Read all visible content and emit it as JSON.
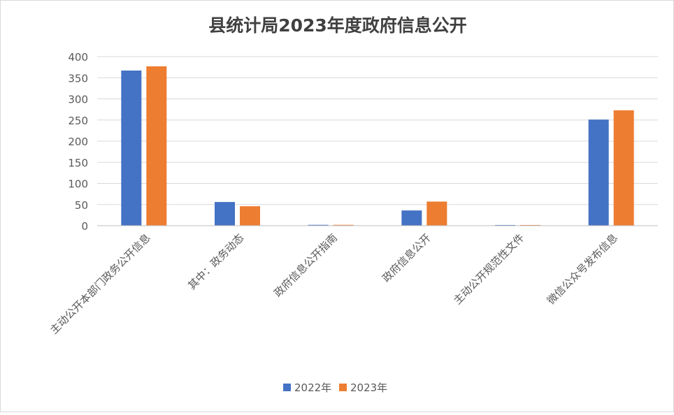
{
  "chart_data": {
    "type": "bar",
    "title": "县统计局2023年度政府信息公开",
    "categories": [
      "主动公开本部门政务公开信息",
      "其中：政务动态",
      "政府信息公开指南",
      "政府信息公开",
      "主动公开规范性文件",
      "微信公众号发布信息"
    ],
    "series": [
      {
        "name": "2022年",
        "color": "#4472C4",
        "values": [
          367,
          56,
          2,
          36,
          0,
          251
        ]
      },
      {
        "name": "2023年",
        "color": "#ED7D31",
        "values": [
          377,
          46,
          2,
          57,
          0,
          273
        ]
      }
    ],
    "ylim": [
      0,
      400
    ],
    "yticks": [
      0,
      50,
      100,
      150,
      200,
      250,
      300,
      350,
      400
    ],
    "grid": true,
    "legend": "bottom"
  }
}
